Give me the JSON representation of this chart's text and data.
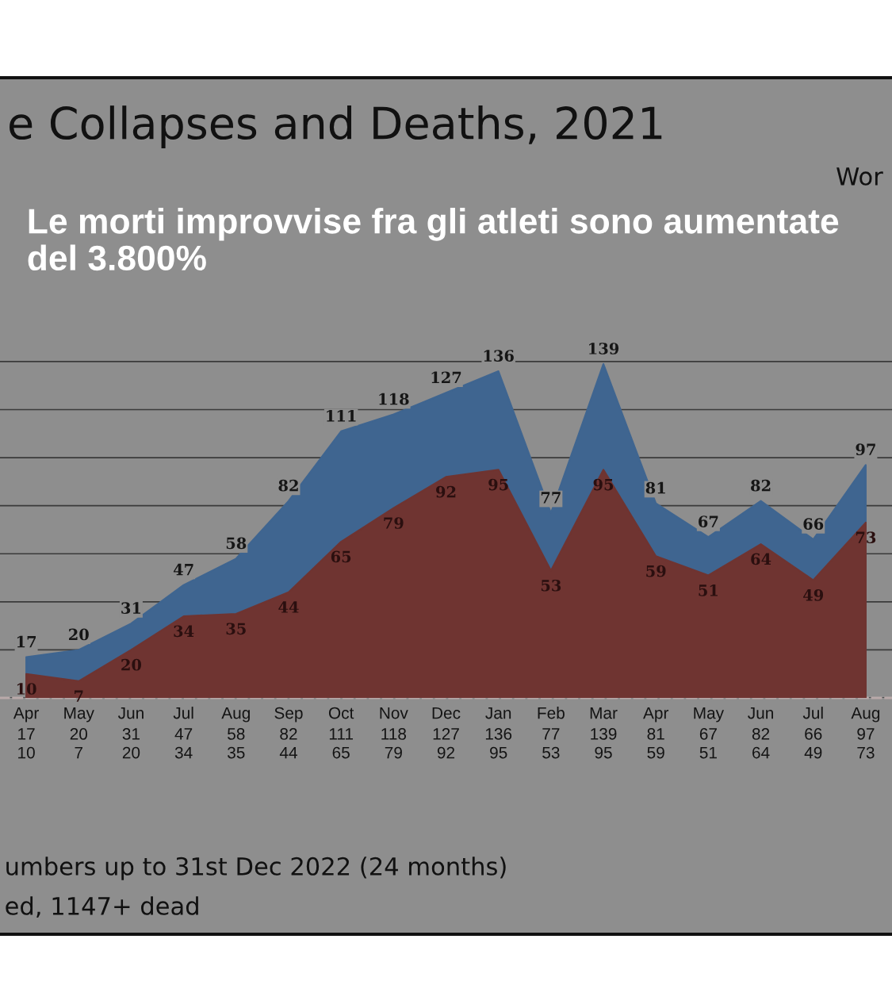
{
  "chart_data": {
    "type": "area",
    "title": "e Collapses and Deaths, 2021",
    "subtitle": "Le morti improvvise fra gli atleti sono aumentate del 3.800%",
    "categories": [
      "Apr",
      "May",
      "Jun",
      "Jul",
      "Aug",
      "Sep",
      "Oct",
      "Nov",
      "Dec",
      "Jan",
      "Feb",
      "Mar",
      "Apr",
      "May",
      "Jun",
      "Jul",
      "Aug"
    ],
    "series": [
      {
        "color": "#3f6590",
        "values": [
          17,
          20,
          31,
          47,
          58,
          82,
          111,
          118,
          127,
          136,
          77,
          139,
          81,
          67,
          82,
          66,
          97
        ],
        "value_labels": [
          "17",
          "20",
          "31",
          "47",
          "58",
          "82",
          "111",
          "118",
          "127",
          "136",
          "77",
          "139",
          "81",
          "67",
          "82",
          "66",
          "97"
        ]
      },
      {
        "color": "#6f3431",
        "values": [
          10,
          7,
          20,
          34,
          35,
          44,
          65,
          79,
          92,
          95,
          53,
          95,
          59,
          51,
          64,
          49,
          73
        ],
        "value_labels": [
          "10",
          "7",
          "20",
          "34",
          "35",
          "44",
          "65",
          "79",
          "92",
          "95",
          "53",
          "95",
          "59",
          "51",
          "64",
          "49",
          "73"
        ]
      }
    ],
    "data_labels": true,
    "grid": "y",
    "tick_labels": "x",
    "annotations": [
      "Wor",
      "umbers up to 31st Dec 2022 (24 months)",
      "ed, 1147+ dead"
    ]
  }
}
